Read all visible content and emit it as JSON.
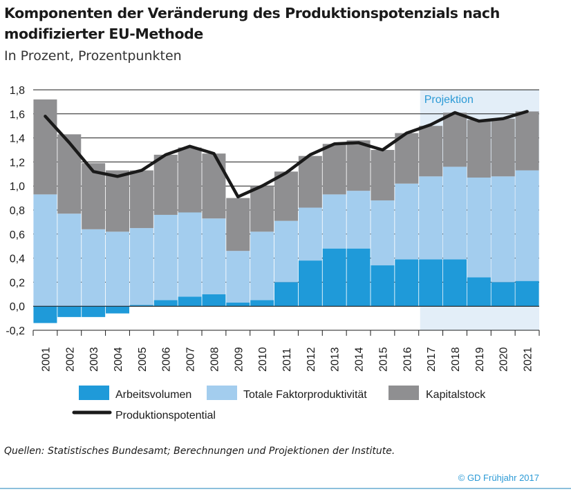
{
  "title": "Komponenten der Veränderung des Produktionspotenzials nach modifizierter EU-Methode",
  "subtitle": "In Prozent, Prozentpunkten",
  "source": "Quellen: Statistisches Bundesamt; Berechnungen und Projektionen der Institute.",
  "copyright": "© GD Frühjahr 2017",
  "colors": {
    "arbeitsvolumen": "#1f9ad9",
    "tfp": "#a3cdee",
    "kapitalstock": "#8f8f91",
    "produktionspotential": "#1a1a1a",
    "projection_bg": "#e3eef8",
    "projection_text": "#2b9ad6",
    "grid": "#1a1a1a",
    "copyright": "#2b9ad6",
    "rule": "#8cc0dc"
  },
  "chart_data": {
    "type": "bar",
    "stacked": true,
    "categories": [
      "2001",
      "2002",
      "2003",
      "2004",
      "2005",
      "2006",
      "2007",
      "2008",
      "2009",
      "2010",
      "2011",
      "2012",
      "2013",
      "2014",
      "2015",
      "2016",
      "2017",
      "2018",
      "2019",
      "2020",
      "2021"
    ],
    "series": [
      {
        "name": "Arbeitsvolumen",
        "key": "arbeitsvolumen",
        "values": [
          -0.14,
          -0.09,
          -0.09,
          -0.06,
          0.01,
          0.05,
          0.08,
          0.1,
          0.03,
          0.05,
          0.2,
          0.38,
          0.48,
          0.48,
          0.34,
          0.39,
          0.39,
          0.39,
          0.24,
          0.2,
          0.21
        ]
      },
      {
        "name": "Totale Faktorproduktivität",
        "key": "tfp",
        "values": [
          0.93,
          0.77,
          0.64,
          0.62,
          0.64,
          0.71,
          0.7,
          0.63,
          0.43,
          0.57,
          0.51,
          0.44,
          0.45,
          0.48,
          0.54,
          0.63,
          0.69,
          0.77,
          0.83,
          0.88,
          0.92
        ]
      },
      {
        "name": "Kapitalstock",
        "key": "kapitalstock",
        "values": [
          0.79,
          0.66,
          0.55,
          0.51,
          0.48,
          0.5,
          0.54,
          0.54,
          0.44,
          0.38,
          0.41,
          0.43,
          0.42,
          0.42,
          0.42,
          0.42,
          0.42,
          0.45,
          0.48,
          0.48,
          0.49
        ]
      }
    ],
    "line": {
      "name": "Produktionspotential",
      "key": "produktionspotential",
      "values": [
        1.58,
        1.36,
        1.12,
        1.08,
        1.13,
        1.26,
        1.33,
        1.27,
        0.91,
        1.0,
        1.11,
        1.26,
        1.35,
        1.36,
        1.3,
        1.44,
        1.51,
        1.61,
        1.54,
        1.56,
        1.62
      ]
    },
    "ylim": [
      -0.2,
      1.8
    ],
    "yticks": [
      "1,8",
      "1,6",
      "1,4",
      "1,2",
      "1,0",
      "0,8",
      "0,6",
      "0,4",
      "0,2",
      "0,0",
      "-0,2"
    ],
    "ytick_values": [
      1.8,
      1.6,
      1.4,
      1.2,
      1.0,
      0.8,
      0.6,
      0.4,
      0.2,
      0.0,
      -0.2
    ],
    "projection": {
      "label": "Projektion",
      "from": "2017",
      "to": "2021"
    },
    "grid": true,
    "legend_placement": "bottom"
  }
}
